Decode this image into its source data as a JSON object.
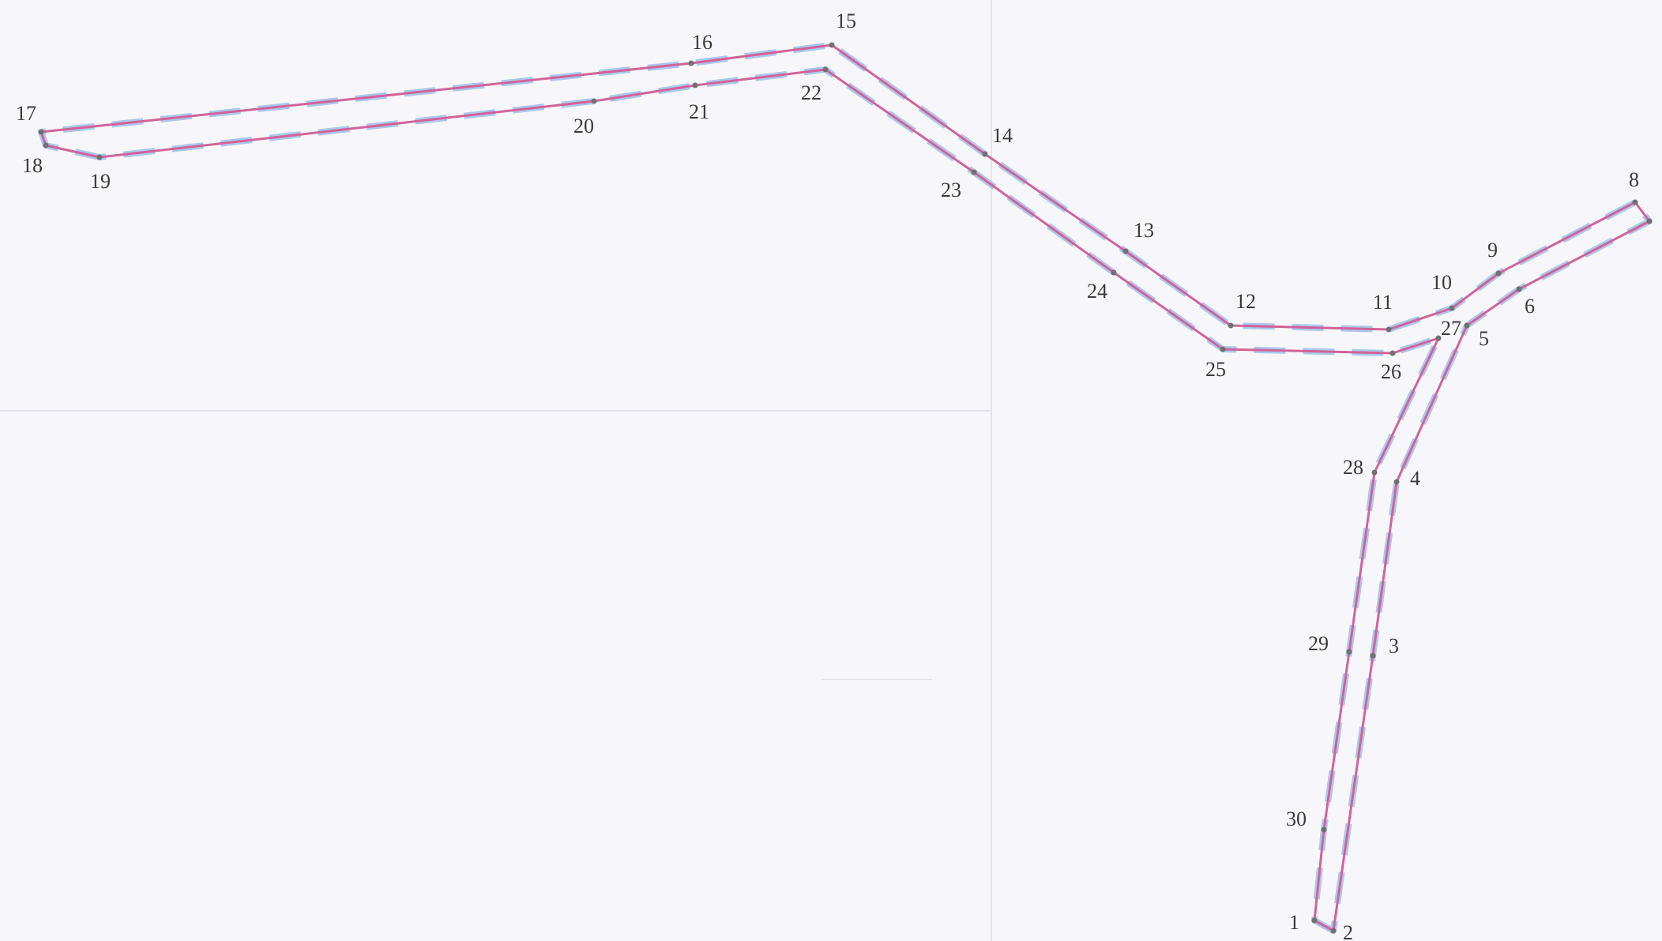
{
  "diagram": {
    "colors": {
      "background": "#f7f7fb",
      "outline": "#d0649a",
      "dash": "#9fbfe8",
      "label": "#3a3a3a",
      "vertex": "#707070"
    },
    "vertices": [
      {
        "id": "1",
        "label": "1"
      },
      {
        "id": "2",
        "label": "2"
      },
      {
        "id": "3",
        "label": "3"
      },
      {
        "id": "4",
        "label": "4"
      },
      {
        "id": "5",
        "label": "5"
      },
      {
        "id": "6",
        "label": "6"
      },
      {
        "id": "7",
        "label": ""
      },
      {
        "id": "8",
        "label": "8"
      },
      {
        "id": "9",
        "label": "9"
      },
      {
        "id": "10",
        "label": "10"
      },
      {
        "id": "11",
        "label": "11"
      },
      {
        "id": "12",
        "label": "12"
      },
      {
        "id": "13",
        "label": "13"
      },
      {
        "id": "14",
        "label": "14"
      },
      {
        "id": "15",
        "label": "15"
      },
      {
        "id": "16",
        "label": "16"
      },
      {
        "id": "17",
        "label": "17"
      },
      {
        "id": "18",
        "label": "18"
      },
      {
        "id": "19",
        "label": "19"
      },
      {
        "id": "20",
        "label": "20"
      },
      {
        "id": "21",
        "label": "21"
      },
      {
        "id": "22",
        "label": "22"
      },
      {
        "id": "23",
        "label": "23"
      },
      {
        "id": "24",
        "label": "24"
      },
      {
        "id": "25",
        "label": "25"
      },
      {
        "id": "26",
        "label": "26"
      },
      {
        "id": "27",
        "label": "27"
      },
      {
        "id": "28",
        "label": "28"
      },
      {
        "id": "29",
        "label": "29"
      },
      {
        "id": "30",
        "label": "30"
      }
    ]
  }
}
